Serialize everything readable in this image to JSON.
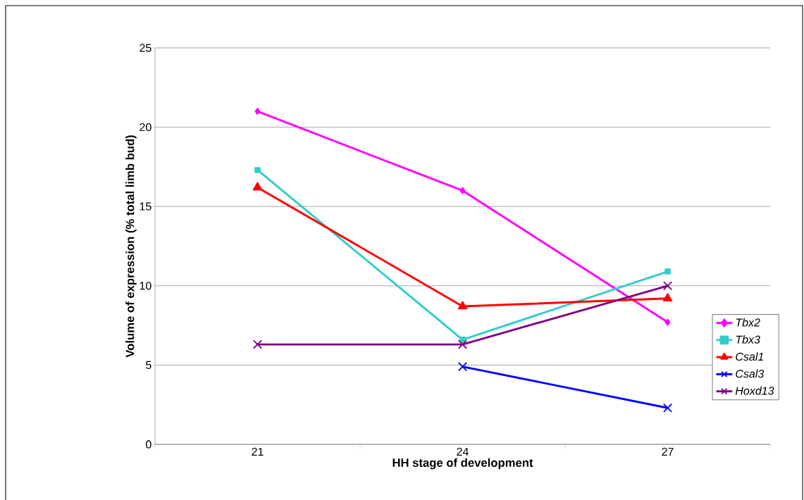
{
  "chart_data": {
    "type": "line",
    "xlabel": "HH stage of development",
    "ylabel": "Volume of expression (% total limb bud)",
    "x": [
      21,
      24,
      27
    ],
    "xlim": [
      19.5,
      28.5
    ],
    "xticks": [
      {
        "value": 19.5,
        "label": null
      },
      21,
      {
        "value": 22.5,
        "label": null
      },
      24,
      {
        "value": 25.5,
        "label": null
      },
      27,
      {
        "value": 28.5,
        "label": null
      }
    ],
    "series": [
      {
        "name": "Tbx2",
        "color": "#ff00ff",
        "marker": "diamond",
        "values": [
          21.0,
          16.0,
          7.7
        ]
      },
      {
        "name": "Tbx3",
        "color": "#33cccc",
        "marker": "square",
        "values": [
          17.3,
          6.6,
          10.9
        ]
      },
      {
        "name": "Csal1",
        "color": "#ff0000",
        "marker": "triangle",
        "values": [
          16.2,
          8.7,
          9.2
        ]
      },
      {
        "name": "Csal3",
        "color": "#0000ff",
        "marker": "cross",
        "values": [
          null,
          4.9,
          2.3
        ]
      },
      {
        "name": "Hoxd13",
        "color": "#800080",
        "marker": "cross",
        "values": [
          6.3,
          6.3,
          10.0
        ]
      }
    ],
    "ylim": [
      0,
      25
    ],
    "yticks": [
      0,
      5,
      10,
      15,
      20,
      25
    ],
    "grid": "y",
    "legend": "right"
  }
}
